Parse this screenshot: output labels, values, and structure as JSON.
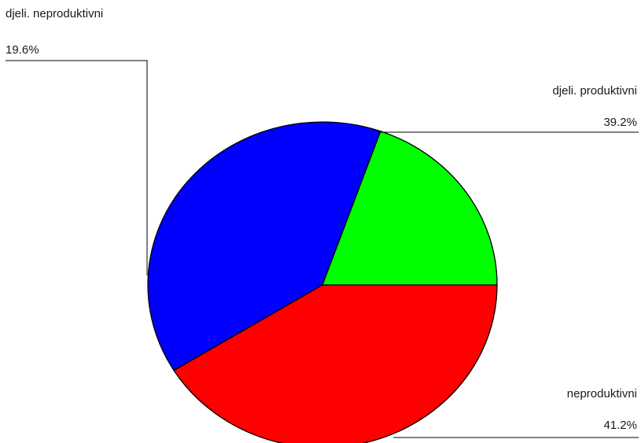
{
  "chart_data": {
    "type": "pie",
    "title": "",
    "slices": [
      {
        "label": "neproduktivni",
        "value": 41.2,
        "value_label": "41.2%",
        "color": "#ff0000"
      },
      {
        "label": "djeli. produktivni",
        "value": 39.2,
        "value_label": "39.2%",
        "color": "#0000ff"
      },
      {
        "label": "djeli. neproduktivni",
        "value": 19.6,
        "value_label": "19.6%",
        "color": "#00ff00"
      }
    ],
    "legend": "none",
    "labels": "outside with leader lines"
  }
}
